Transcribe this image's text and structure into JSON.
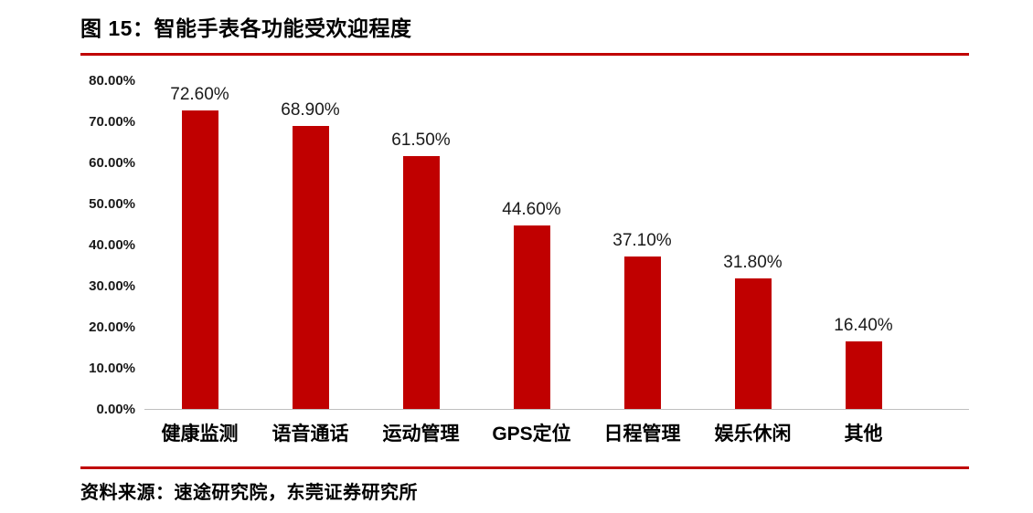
{
  "figure": {
    "title": "图 15：智能手表各功能受欢迎程度",
    "source": "资料来源：速途研究院，东莞证券研究所"
  },
  "colors": {
    "bar": "#C00000",
    "divider": "#C00000",
    "axis_line": "#bfbfbf",
    "text": "#000000"
  },
  "chart_data": {
    "type": "bar",
    "title": "智能手表各功能受欢迎程度",
    "categories": [
      "健康监测",
      "语音通话",
      "运动管理",
      "GPS定位",
      "日程管理",
      "娱乐休闲",
      "其他"
    ],
    "values": [
      72.6,
      68.9,
      61.5,
      44.6,
      37.1,
      31.8,
      16.4
    ],
    "value_labels": [
      "72.60%",
      "68.90%",
      "61.50%",
      "44.60%",
      "37.10%",
      "31.80%",
      "16.40%"
    ],
    "xlabel": "",
    "ylabel": "",
    "ylim": [
      0,
      80
    ],
    "ytick_step": 10,
    "ytick_labels": [
      "0.00%",
      "10.00%",
      "20.00%",
      "30.00%",
      "40.00%",
      "50.00%",
      "60.00%",
      "70.00%",
      "80.00%"
    ],
    "grid": false,
    "legend": false,
    "bar_color": "#C00000"
  }
}
